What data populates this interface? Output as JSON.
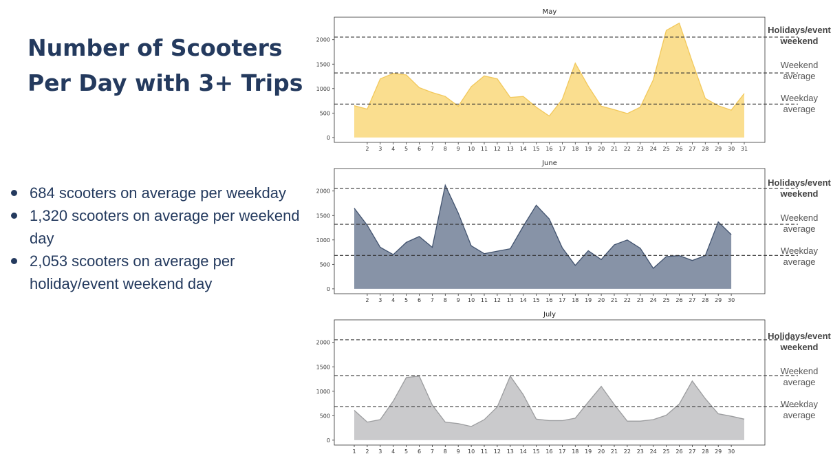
{
  "page": {
    "title_lines": [
      "Number of Scooters",
      "Per Day with 3+ Trips"
    ],
    "bullets": [
      "684 scooters on average per weekday",
      "1,320 scooters on average per weekend day",
      "2,053 scooters on average per holiday/event weekend day"
    ]
  },
  "reference_lines": [
    {
      "label_line1": "Holidays/event",
      "label_line2": "weekend",
      "value": 2053
    },
    {
      "label_line1": "Weekend",
      "label_line2": "average",
      "value": 1320
    },
    {
      "label_line1": "Weekday",
      "label_line2": "average",
      "value": 684
    }
  ],
  "chart_data": [
    {
      "type": "area",
      "title": "May",
      "color": "#f7c845",
      "x": [
        1,
        2,
        3,
        4,
        5,
        6,
        7,
        8,
        9,
        10,
        11,
        12,
        13,
        14,
        15,
        16,
        17,
        18,
        19,
        20,
        21,
        22,
        23,
        24,
        25,
        26,
        27,
        28,
        29,
        30,
        31
      ],
      "values": [
        650,
        580,
        1200,
        1310,
        1280,
        1020,
        920,
        840,
        640,
        1040,
        1260,
        1200,
        820,
        840,
        620,
        440,
        780,
        1520,
        1050,
        640,
        570,
        490,
        620,
        1180,
        2190,
        2340,
        1550,
        800,
        650,
        560,
        900
      ],
      "x_ticks": [
        "2",
        "3",
        "4",
        "5",
        "6",
        "7",
        "8",
        "9",
        "10",
        "11",
        "12",
        "13",
        "14",
        "15",
        "16",
        "17",
        "18",
        "19",
        "20",
        "21",
        "22",
        "23",
        "24",
        "25",
        "26",
        "27",
        "28",
        "29",
        "30",
        "31"
      ],
      "yticks": [
        0,
        500,
        1000,
        1500,
        2000
      ],
      "ylim": [
        -100,
        2460
      ]
    },
    {
      "type": "area",
      "title": "June",
      "color": "#243a5e",
      "x": [
        1,
        2,
        3,
        4,
        5,
        6,
        7,
        8,
        9,
        10,
        11,
        12,
        13,
        14,
        15,
        16,
        17,
        18,
        19,
        20,
        21,
        22,
        23,
        24,
        25,
        26,
        27,
        28,
        29,
        30
      ],
      "values": [
        1650,
        1300,
        850,
        700,
        950,
        1070,
        850,
        2120,
        1550,
        880,
        720,
        770,
        820,
        1280,
        1710,
        1430,
        840,
        480,
        780,
        600,
        900,
        1000,
        830,
        420,
        660,
        680,
        580,
        680,
        1370,
        1110
      ],
      "x_ticks": [
        "2",
        "3",
        "4",
        "5",
        "6",
        "7",
        "8",
        "9",
        "10",
        "11",
        "12",
        "13",
        "14",
        "15",
        "16",
        "17",
        "18",
        "19",
        "20",
        "21",
        "22",
        "23",
        "24",
        "25",
        "26",
        "27",
        "28",
        "29",
        "30"
      ],
      "yticks": [
        0,
        500,
        1000,
        1500,
        2000
      ],
      "ylim": [
        -100,
        2460
      ]
    },
    {
      "type": "area",
      "title": "July",
      "color": "#a6a7aa",
      "x": [
        1,
        2,
        3,
        4,
        5,
        6,
        7,
        8,
        9,
        10,
        11,
        12,
        13,
        14,
        15,
        16,
        17,
        18,
        19,
        20,
        21,
        22,
        23,
        24,
        25,
        26,
        27,
        28,
        29,
        30,
        31
      ],
      "values": [
        610,
        370,
        420,
        800,
        1280,
        1310,
        720,
        370,
        340,
        280,
        420,
        680,
        1310,
        930,
        430,
        400,
        400,
        450,
        780,
        1100,
        730,
        390,
        390,
        420,
        510,
        740,
        1210,
        850,
        540,
        490,
        430
      ],
      "x_ticks": [
        "1",
        "2",
        "3",
        "4",
        "5",
        "6",
        "7",
        "8",
        "9",
        "10",
        "11",
        "12",
        "13",
        "14",
        "15",
        "16",
        "17",
        "18",
        "19",
        "20",
        "21",
        "22",
        "23",
        "24",
        "25",
        "26",
        "27",
        "28",
        "29",
        "30"
      ],
      "yticks": [
        0,
        500,
        1000,
        1500,
        2000
      ],
      "ylim": [
        -100,
        2460
      ]
    }
  ]
}
